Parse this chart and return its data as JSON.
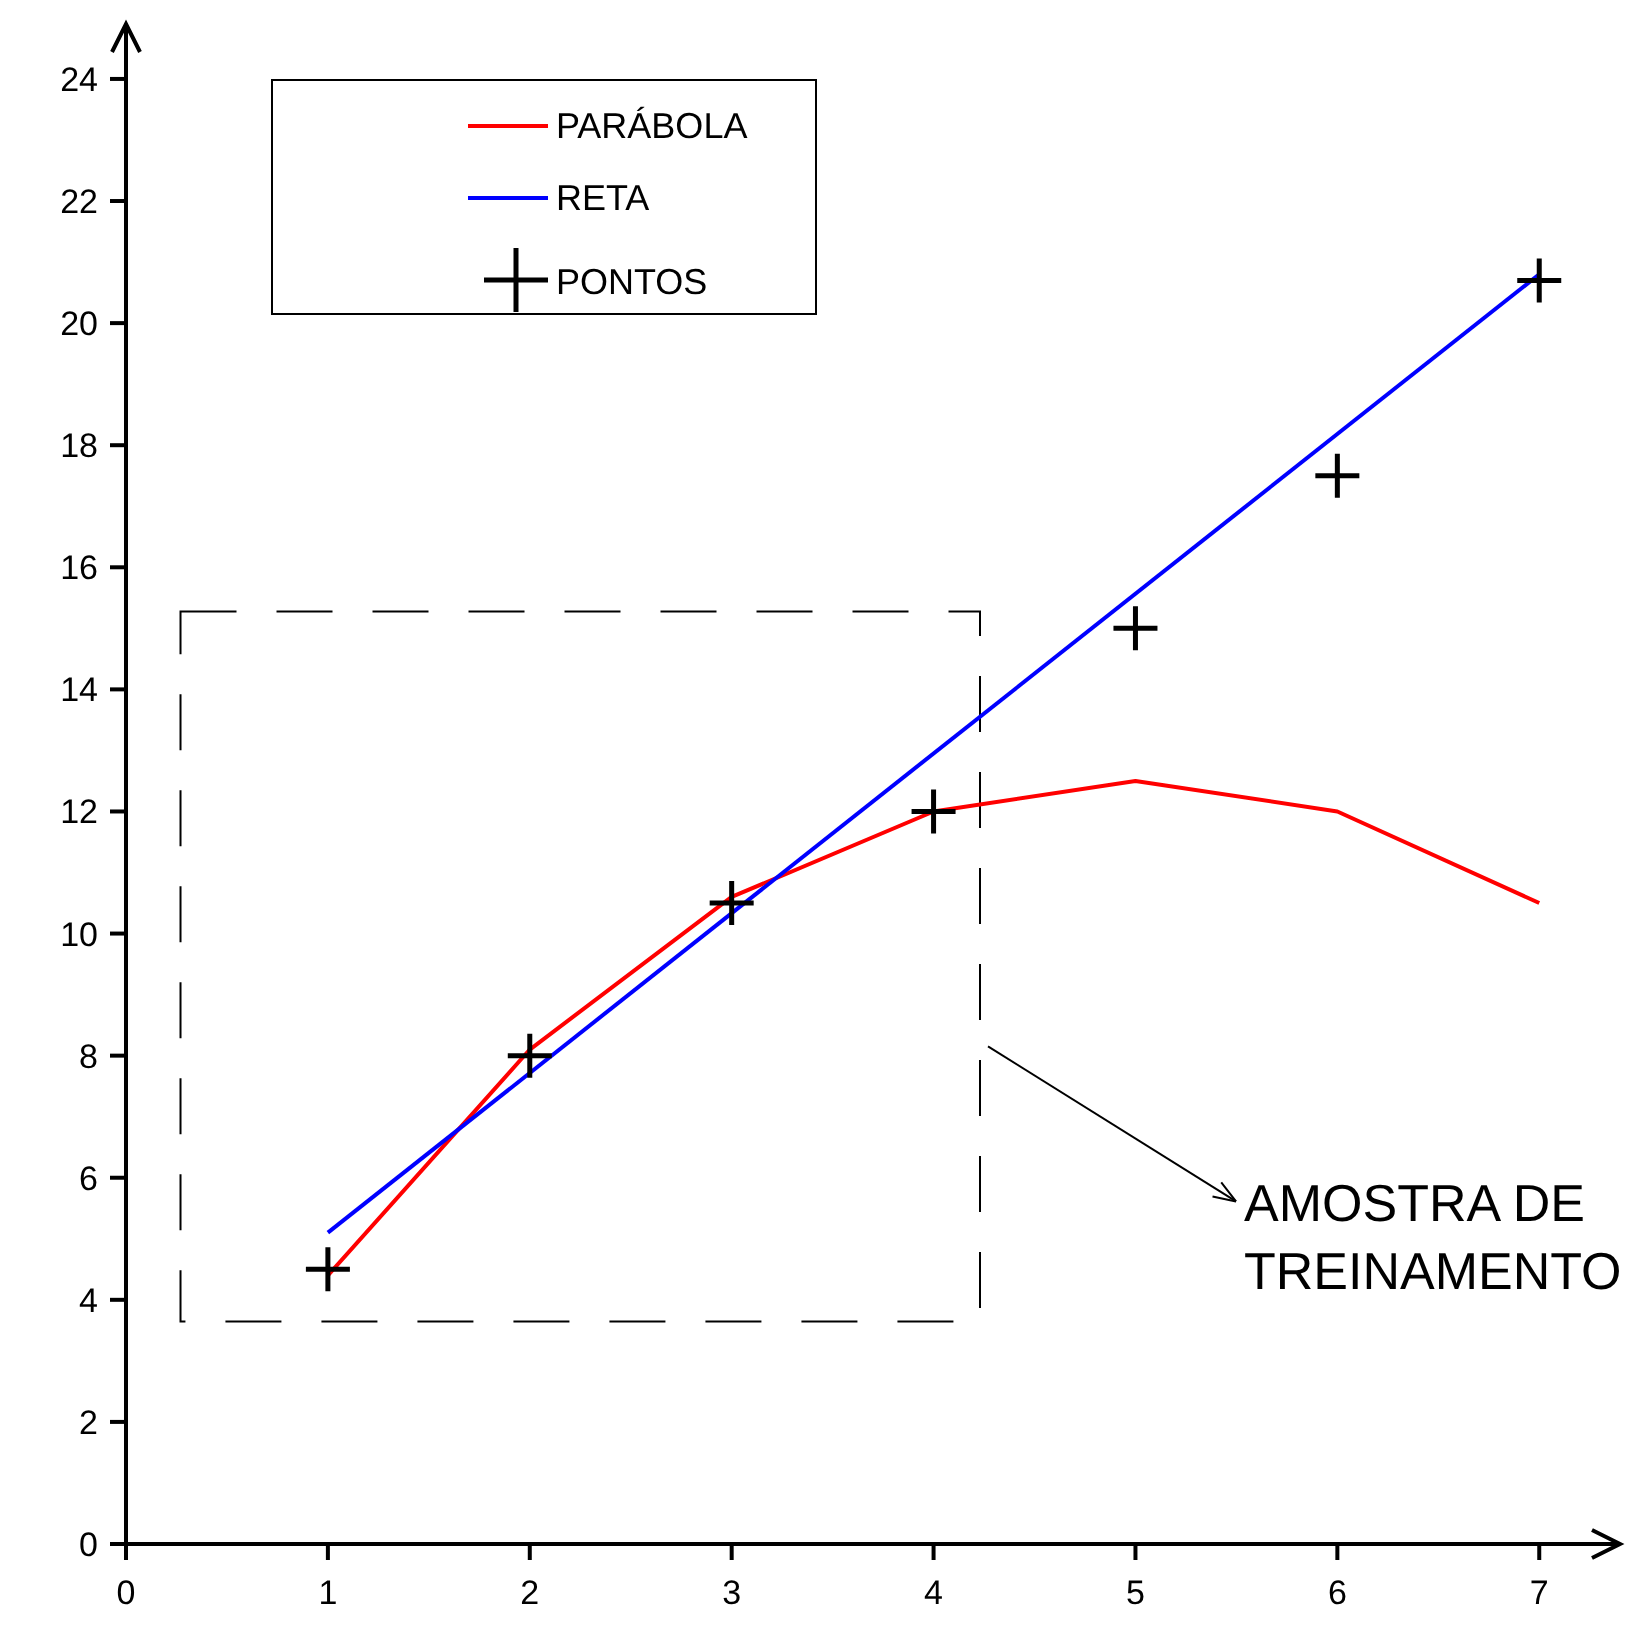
{
  "chart_data": {
    "type": "line",
    "x": [
      1,
      2,
      3,
      4,
      5,
      6,
      7
    ],
    "series": [
      {
        "name": "PARÁBOLA",
        "color": "#ff0000",
        "values": [
          4.4,
          8.1,
          10.6,
          12,
          12.5,
          12,
          10.5
        ]
      },
      {
        "name": "RETA",
        "color": "#0000ff",
        "x": [
          1,
          7
        ],
        "values": [
          5.1,
          20.8
        ]
      },
      {
        "name": "PONTOS",
        "type": "scatter",
        "color": "#000000",
        "marker": "cross",
        "values": [
          4.5,
          8,
          10.5,
          12,
          15,
          17.5,
          20.7
        ]
      }
    ],
    "xlim": [
      0,
      7.4
    ],
    "ylim": [
      0,
      24.9
    ],
    "xticks": [
      0,
      1,
      2,
      3,
      4,
      5,
      6,
      7
    ],
    "yticks": [
      0,
      2,
      4,
      6,
      8,
      10,
      12,
      14,
      16,
      18,
      20,
      22,
      24
    ],
    "grid": false,
    "legend": "top left",
    "bands": [
      {
        "axis": "x",
        "from": 0.27,
        "to": 4.23,
        "label": "AMOSTRA DE TREINAMENTO",
        "color": "#ffffff"
      }
    ]
  }
}
